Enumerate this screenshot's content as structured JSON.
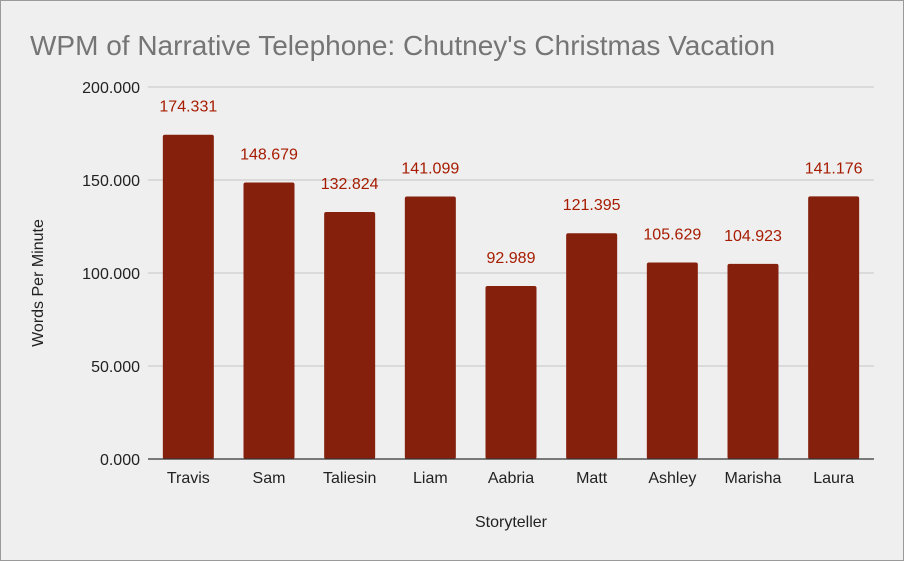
{
  "chart_data": {
    "type": "bar",
    "title": "WPM of Narrative Telephone: Chutney's Christmas Vacation",
    "xlabel": "Storyteller",
    "ylabel": "Words Per Minute",
    "categories": [
      "Travis",
      "Sam",
      "Taliesin",
      "Liam",
      "Aabria",
      "Matt",
      "Ashley",
      "Marisha",
      "Laura"
    ],
    "values": [
      174.331,
      148.679,
      132.824,
      141.099,
      92.989,
      121.395,
      105.629,
      104.923,
      141.176
    ],
    "data_labels": [
      "174.331",
      "148.679",
      "132.824",
      "141.099",
      "92.989",
      "121.395",
      "105.629",
      "104.923",
      "141.176"
    ],
    "ylim": [
      0,
      200
    ],
    "yticks": [
      0,
      50,
      100,
      150,
      200
    ],
    "ytick_labels": [
      "0.000",
      "50.000",
      "100.000",
      "150.000",
      "200.000"
    ],
    "grid": true,
    "legend": "none",
    "bar_color": "#85200c",
    "label_color": "#a61c00"
  }
}
